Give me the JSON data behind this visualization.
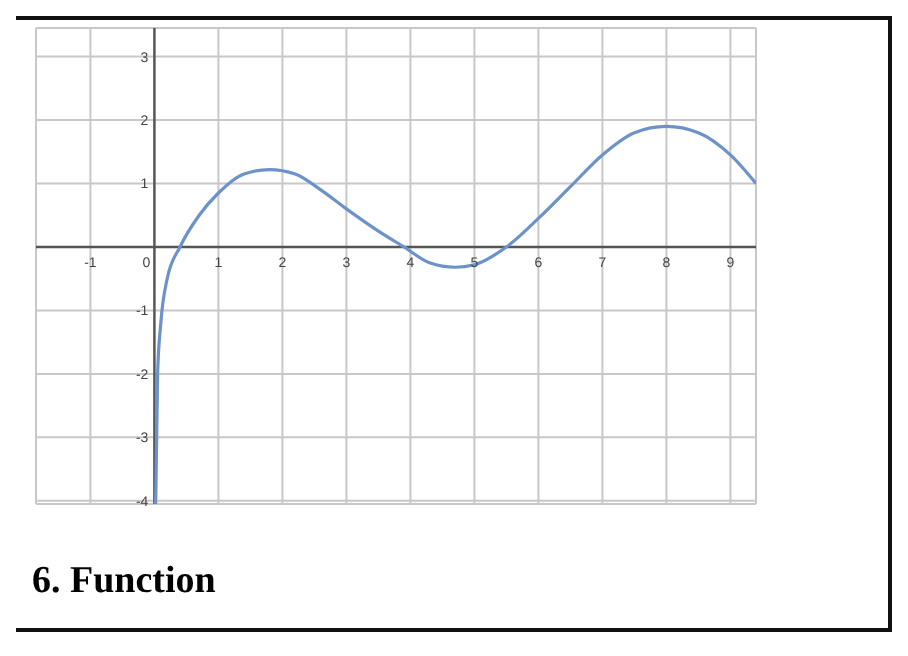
{
  "chart_data": {
    "type": "line",
    "title": "6. Function",
    "x": [
      0.02,
      0.05,
      0.1,
      0.2,
      0.4,
      0.7,
      1,
      1.4,
      1.8,
      2.2,
      2.6,
      3,
      3.5,
      3.9,
      4.3,
      4.7,
      5,
      5.5,
      6,
      6.5,
      7,
      7.5,
      8,
      8.5,
      9,
      9.4
    ],
    "series": [
      {
        "color": "#6b93c9",
        "values": [
          -4.05,
          -2,
          -1.2,
          -0.5,
          0,
          0.5,
          0.85,
          1.15,
          1.22,
          1.15,
          0.9,
          0.6,
          0.25,
          0,
          -0.25,
          -0.32,
          -0.28,
          0,
          0.45,
          0.95,
          1.45,
          1.8,
          1.9,
          1.8,
          1.45,
          1.0
        ]
      }
    ],
    "xlim": [
      -1.85,
      9.4
    ],
    "ylim": [
      -4.05,
      3.45
    ],
    "xticks": [
      -1,
      0,
      1,
      2,
      3,
      4,
      5,
      6,
      7,
      8,
      9
    ],
    "yticks": [
      -4,
      -3,
      -2,
      -1,
      1,
      2,
      3
    ],
    "grid": true,
    "marker": "none",
    "line_style": "solid"
  }
}
